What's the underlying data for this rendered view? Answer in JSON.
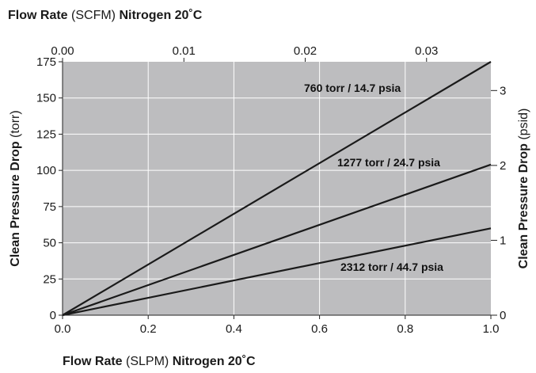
{
  "chart_data": {
    "type": "line",
    "colors": {
      "plot_bg": "#bdbdbf",
      "grid": "#ffffff",
      "line": "#1a1a1a"
    },
    "grid": true,
    "x_bottom": {
      "label_bold": "Flow Rate",
      "label_unit": " (SLPM) ",
      "label_bold2": "Nitrogen 20˚C",
      "range": [
        0,
        1.0
      ],
      "ticks": [
        "0.0",
        "0.2",
        "0.4",
        "0.6",
        "0.8",
        "1.0"
      ]
    },
    "x_top": {
      "label_bold": "Flow Rate",
      "label_unit": " (SCFM) ",
      "label_bold2": "Nitrogen 20˚C",
      "range": [
        0,
        0.0353
      ],
      "ticks": [
        "0.00",
        "0.01",
        "0.02",
        "0.03"
      ]
    },
    "y_left": {
      "label_bold": "Clean Pressure Drop",
      "label_unit": " (torr)",
      "range": [
        0,
        175
      ],
      "ticks": [
        "0",
        "25",
        "50",
        "75",
        "100",
        "125",
        "150",
        "175"
      ]
    },
    "y_right": {
      "label_bold": "Clean Pressure Drop",
      "label_unit": " (psid)",
      "range": [
        0,
        3.384
      ],
      "ticks": [
        "0",
        "1",
        "2",
        "3"
      ]
    },
    "series": [
      {
        "name": "760 torr / 14.7 psia",
        "x": [
          0,
          1.0
        ],
        "y": [
          0,
          175
        ]
      },
      {
        "name": "1277 torr /  24.7 psia",
        "x": [
          0,
          1.0
        ],
        "y": [
          0,
          104
        ]
      },
      {
        "name": "2312 torr /  44.7 psia",
        "x": [
          0,
          1.0
        ],
        "y": [
          0,
          60
        ]
      }
    ]
  }
}
